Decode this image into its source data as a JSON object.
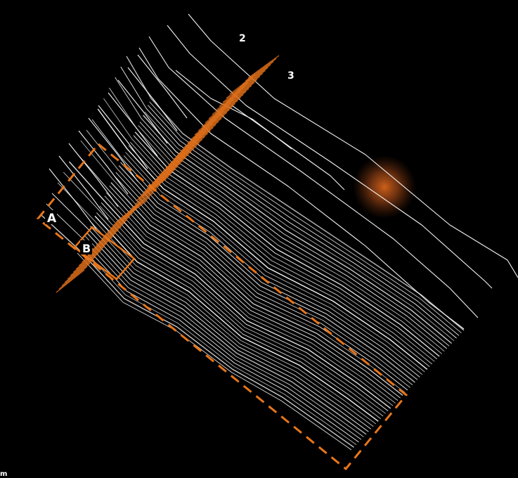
{
  "labels": {
    "box_a": "A",
    "box_b": "B",
    "line_2": "2",
    "line_3": "3",
    "corner": "m"
  },
  "colors": {
    "background": "#000000",
    "contour": "#f2f2f2",
    "accent": "#e8761a",
    "hotspot": "#d8651a"
  }
}
